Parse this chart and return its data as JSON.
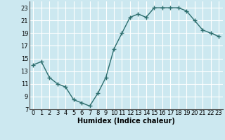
{
  "x": [
    0,
    1,
    2,
    3,
    4,
    5,
    6,
    7,
    8,
    9,
    10,
    11,
    12,
    13,
    14,
    15,
    16,
    17,
    18,
    19,
    20,
    21,
    22,
    23
  ],
  "y": [
    14.0,
    14.5,
    12.0,
    11.0,
    10.5,
    8.5,
    8.0,
    7.5,
    9.5,
    12.0,
    16.5,
    19.0,
    21.5,
    22.0,
    21.5,
    23.0,
    23.0,
    23.0,
    23.0,
    22.5,
    21.0,
    19.5,
    19.0,
    18.5
  ],
  "line_color": "#2d6e6e",
  "marker": "+",
  "markersize": 4,
  "linewidth": 1.0,
  "bg_color": "#cce8f0",
  "grid_color": "#ffffff",
  "xlabel": "Humidex (Indice chaleur)",
  "xlim": [
    -0.5,
    23.5
  ],
  "ylim": [
    7,
    24
  ],
  "yticks": [
    7,
    9,
    11,
    13,
    15,
    17,
    19,
    21,
    23
  ],
  "xticks": [
    0,
    1,
    2,
    3,
    4,
    5,
    6,
    7,
    8,
    9,
    10,
    11,
    12,
    13,
    14,
    15,
    16,
    17,
    18,
    19,
    20,
    21,
    22,
    23
  ],
  "tick_fontsize": 6,
  "xlabel_fontsize": 7
}
